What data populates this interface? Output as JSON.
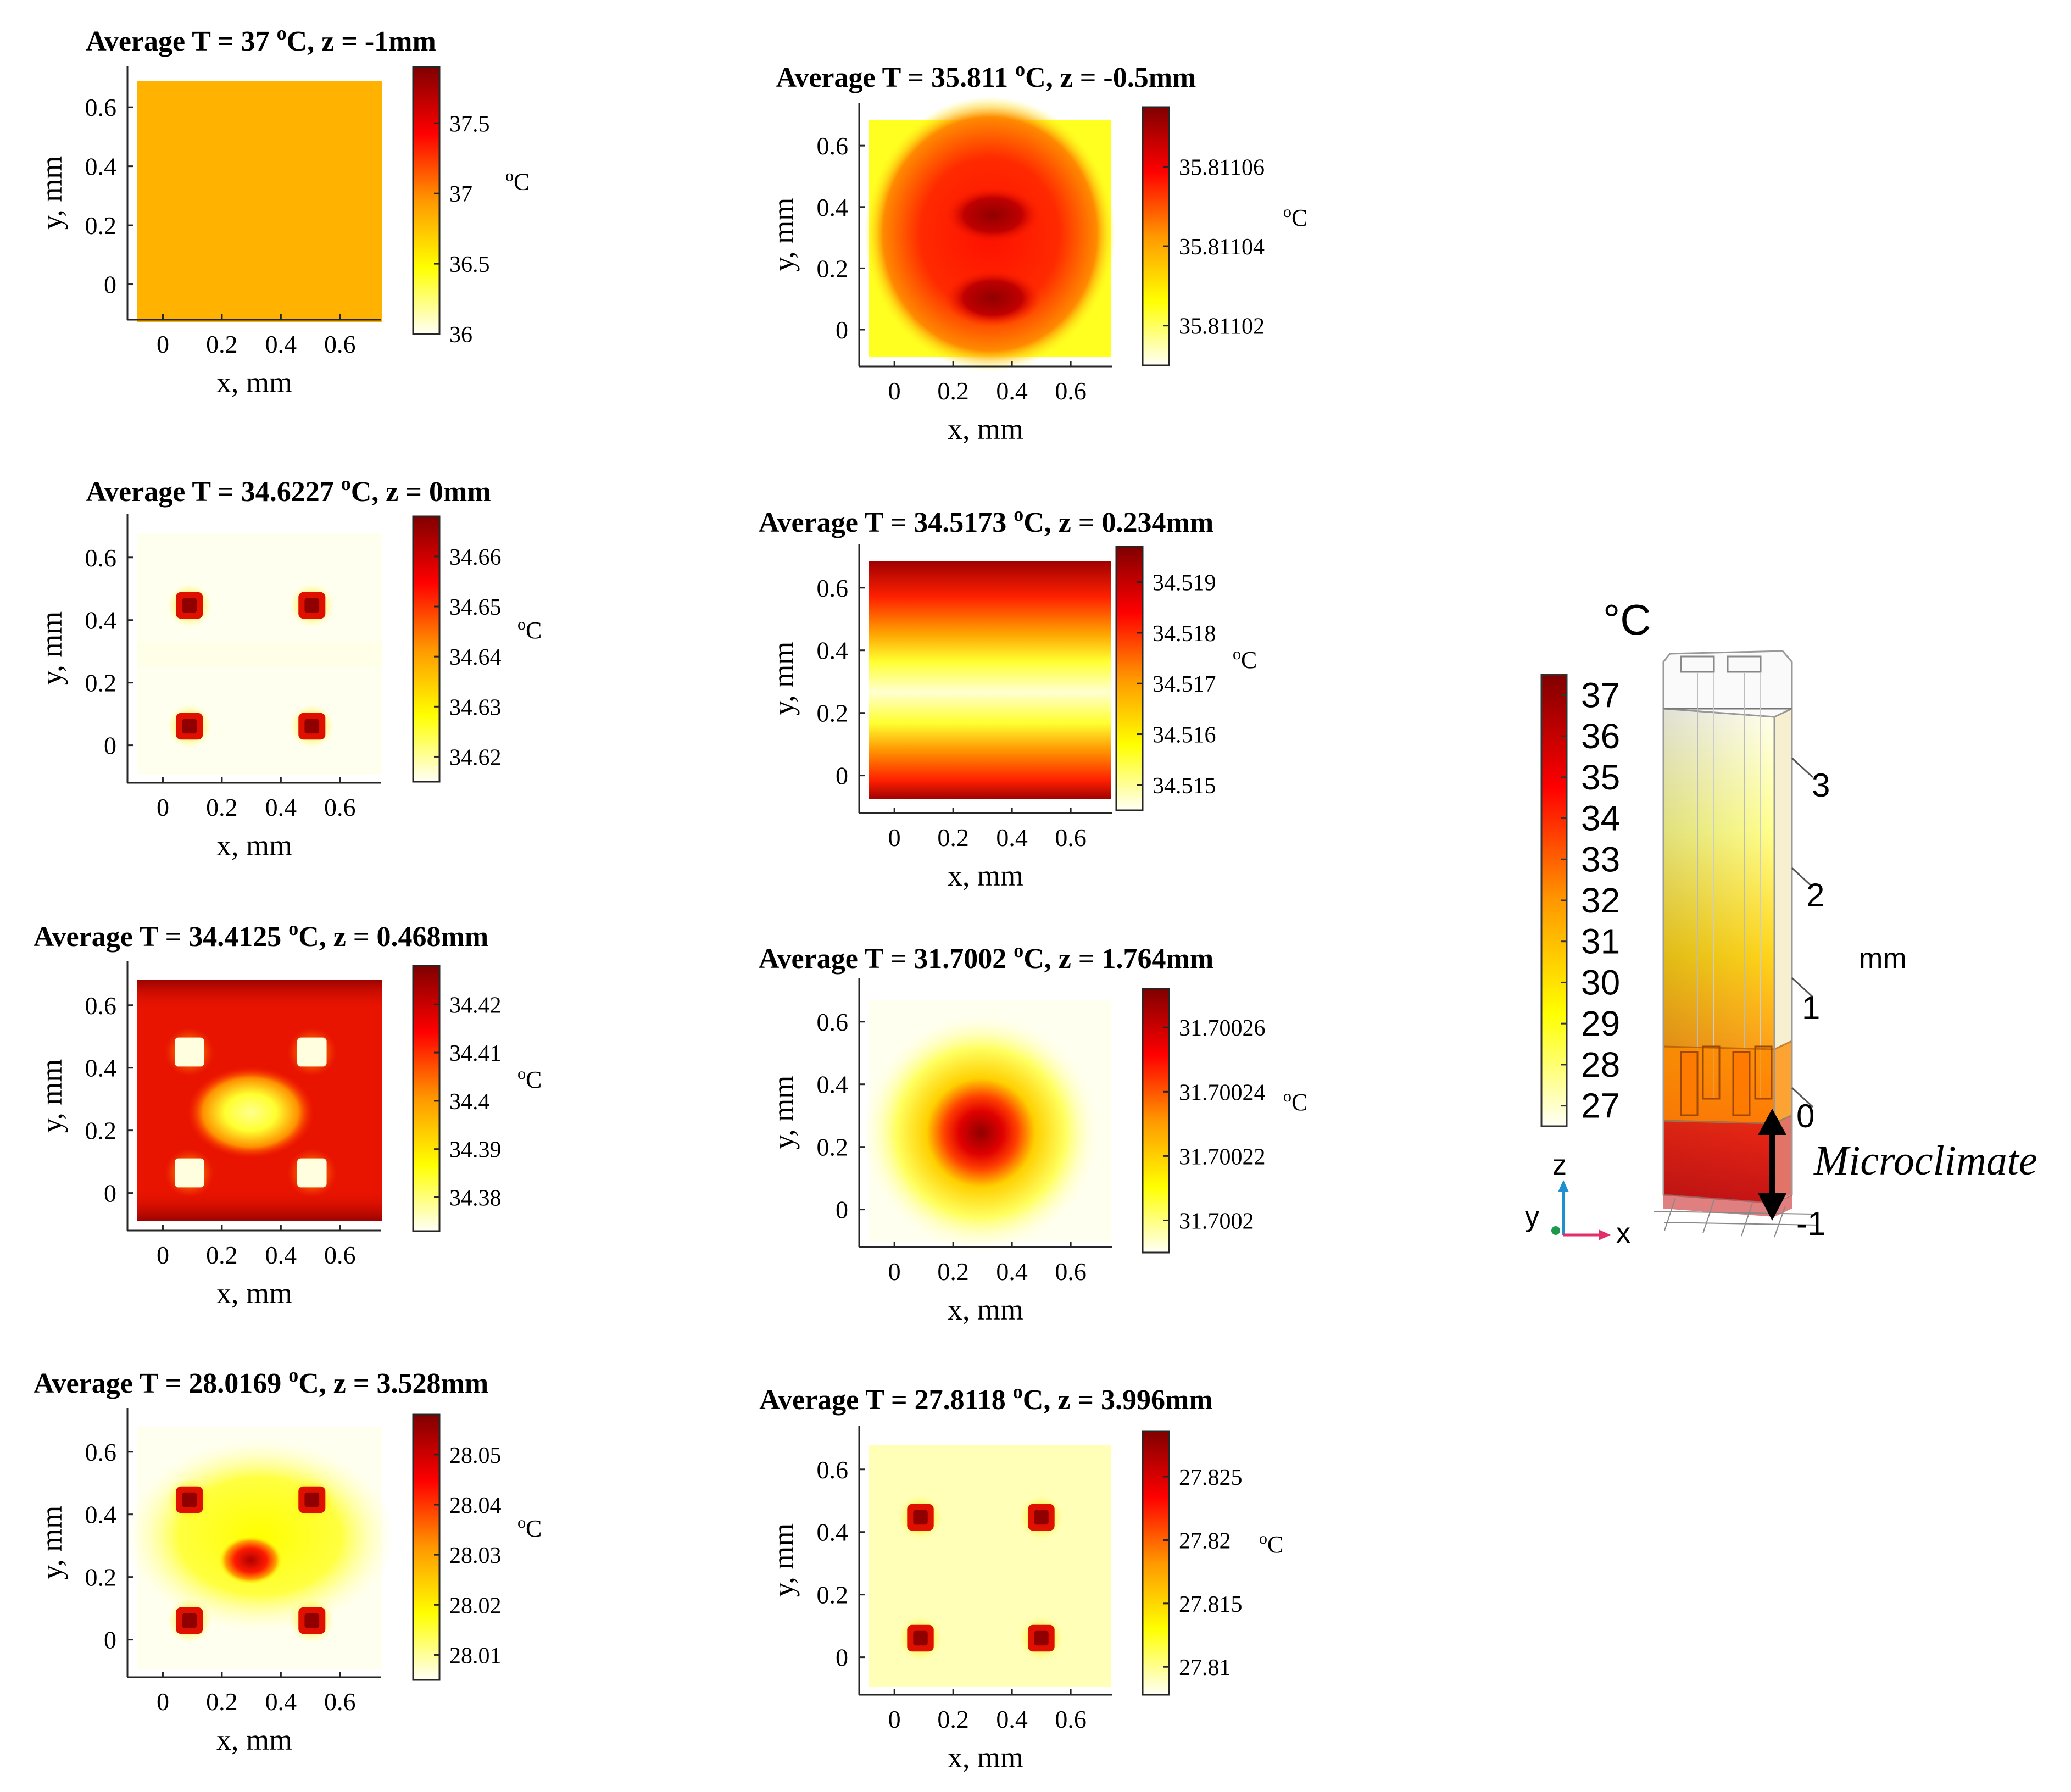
{
  "chart_data": [
    {
      "type": "heatmap",
      "title": "Average T = 37 °C, z = -1mm",
      "title_parts": {
        "pre": "Average T = 37 ",
        "sup": "o",
        "post": "C, z = -1mm"
      },
      "z_mm": -1,
      "average_temperature_c": 37,
      "xlabel": "x, mm",
      "ylabel": "y, mm",
      "xticks": [
        "0",
        "0.2",
        "0.4",
        "0.6"
      ],
      "yticks": [
        "0",
        "0.2",
        "0.4",
        "0.6"
      ],
      "colorbar": {
        "label": "°C",
        "label_parts": {
          "sup": "o",
          "text": "C"
        },
        "range": [
          36,
          37.9
        ],
        "ticks": [
          36,
          36.5,
          37,
          37.5
        ],
        "tick_labels": [
          "36",
          "36.5",
          "37",
          "37.5"
        ]
      },
      "field": {
        "kind": "uniform",
        "value": 37
      }
    },
    {
      "type": "heatmap",
      "title": "Average T = 35.811 °C, z = -0.5mm",
      "title_parts": {
        "pre": "Average T = 35.811 ",
        "sup": "o",
        "post": "C, z = -0.5mm"
      },
      "z_mm": -0.5,
      "average_temperature_c": 35.811,
      "xlabel": "x, mm",
      "ylabel": "y, mm",
      "xticks": [
        "0",
        "0.2",
        "0.4",
        "0.6"
      ],
      "yticks": [
        "0",
        "0.2",
        "0.4",
        "0.6"
      ],
      "colorbar": {
        "label": "°C",
        "label_parts": {
          "sup": "o",
          "text": "C"
        },
        "range": [
          35.81101,
          35.811075
        ],
        "ticks": [
          35.81102,
          35.81104,
          35.81106
        ],
        "tick_labels": [
          "35.81102",
          "35.81104",
          "35.81106"
        ]
      },
      "field": {
        "kind": "twin-hot-core",
        "hot_centers": [
          [
            0.33,
            0.4
          ],
          [
            0.33,
            0.12
          ]
        ]
      }
    },
    {
      "type": "heatmap",
      "title": "Average T = 34.6227 °C, z = 0mm",
      "title_parts": {
        "pre": "Average T = 34.6227 ",
        "sup": "o",
        "post": "C, z = 0mm"
      },
      "z_mm": 0,
      "average_temperature_c": 34.6227,
      "xlabel": "x, mm",
      "ylabel": "y, mm",
      "xticks": [
        "0",
        "0.2",
        "0.4",
        "0.6"
      ],
      "yticks": [
        "0",
        "0.2",
        "0.4",
        "0.6"
      ],
      "colorbar": {
        "label": "°C",
        "label_parts": {
          "sup": "o",
          "text": "C"
        },
        "range": [
          34.615,
          34.668
        ],
        "ticks": [
          34.62,
          34.63,
          34.64,
          34.65,
          34.66
        ],
        "tick_labels": [
          "34.62",
          "34.63",
          "34.64",
          "34.65",
          "34.66"
        ]
      },
      "field": {
        "kind": "four-hot-squares",
        "spots": [
          [
            0.09,
            0.48
          ],
          [
            0.49,
            0.48
          ],
          [
            0.09,
            0.08
          ],
          [
            0.49,
            0.08
          ]
        ]
      }
    },
    {
      "type": "heatmap",
      "title": "Average T = 34.5173 °C, z = 0.234mm",
      "title_parts": {
        "pre": "Average T = 34.5173 ",
        "sup": "o",
        "post": "C, z = 0.234mm"
      },
      "z_mm": 0.234,
      "average_temperature_c": 34.5173,
      "xlabel": "x, mm",
      "ylabel": "y, mm",
      "xticks": [
        "0",
        "0.2",
        "0.4",
        "0.6"
      ],
      "yticks": [
        "0",
        "0.2",
        "0.4",
        "0.6"
      ],
      "colorbar": {
        "label": "°C",
        "label_parts": {
          "sup": "o",
          "text": "C"
        },
        "range": [
          34.5145,
          34.5197
        ],
        "ticks": [
          34.515,
          34.516,
          34.517,
          34.518,
          34.519
        ],
        "tick_labels": [
          "34.515",
          "34.516",
          "34.517",
          "34.518",
          "34.519"
        ]
      },
      "field": {
        "kind": "horizontal-band",
        "cool_center_y": 0.28
      }
    },
    {
      "type": "heatmap",
      "title": "Average T = 34.4125 °C, z = 0.468mm",
      "title_parts": {
        "pre": "Average T = 34.4125 ",
        "sup": "o",
        "post": "C, z = 0.468mm"
      },
      "z_mm": 0.468,
      "average_temperature_c": 34.4125,
      "xlabel": "x, mm",
      "ylabel": "y, mm",
      "xticks": [
        "0",
        "0.2",
        "0.4",
        "0.6"
      ],
      "yticks": [
        "0",
        "0.2",
        "0.4",
        "0.6"
      ],
      "colorbar": {
        "label": "°C",
        "label_parts": {
          "sup": "o",
          "text": "C"
        },
        "range": [
          34.373,
          34.428
        ],
        "ticks": [
          34.38,
          34.39,
          34.4,
          34.41,
          34.42
        ],
        "tick_labels": [
          "34.38",
          "34.39",
          "34.4",
          "34.41",
          "34.42"
        ]
      },
      "field": {
        "kind": "four-cool-squares-center-cool",
        "spots": [
          [
            0.09,
            0.48
          ],
          [
            0.49,
            0.48
          ],
          [
            0.09,
            0.08
          ],
          [
            0.49,
            0.08
          ]
        ],
        "center": [
          0.29,
          0.28
        ]
      }
    },
    {
      "type": "heatmap",
      "title": "Average T = 31.7002 °C, z = 1.764mm",
      "title_parts": {
        "pre": "Average T = 31.7002 ",
        "sup": "o",
        "post": "C, z = 1.764mm"
      },
      "z_mm": 1.764,
      "average_temperature_c": 31.7002,
      "xlabel": "x, mm",
      "ylabel": "y, mm",
      "xticks": [
        "0",
        "0.2",
        "0.4",
        "0.6"
      ],
      "yticks": [
        "0",
        "0.2",
        "0.4",
        "0.6"
      ],
      "colorbar": {
        "label": "°C",
        "label_parts": {
          "sup": "o",
          "text": "C"
        },
        "range": [
          31.70019,
          31.700272
        ],
        "ticks": [
          31.7002,
          31.70022,
          31.70024,
          31.70026
        ],
        "tick_labels": [
          "31.7002",
          "31.70022",
          "31.70024",
          "31.70026"
        ]
      },
      "field": {
        "kind": "central-hot-spot",
        "center": [
          0.29,
          0.28
        ]
      }
    },
    {
      "type": "heatmap",
      "title": "Average T = 28.0169 °C, z = 3.528mm",
      "title_parts": {
        "pre": "Average T = 28.0169 ",
        "sup": "o",
        "post": "C, z = 3.528mm"
      },
      "z_mm": 3.528,
      "average_temperature_c": 28.0169,
      "xlabel": "x, mm",
      "ylabel": "y, mm",
      "xticks": [
        "0",
        "0.2",
        "0.4",
        "0.6"
      ],
      "yticks": [
        "0",
        "0.2",
        "0.4",
        "0.6"
      ],
      "colorbar": {
        "label": "°C",
        "label_parts": {
          "sup": "o",
          "text": "C"
        },
        "range": [
          28.005,
          28.058
        ],
        "ticks": [
          28.01,
          28.02,
          28.03,
          28.04,
          28.05
        ],
        "tick_labels": [
          "28.01",
          "28.02",
          "28.03",
          "28.04",
          "28.05"
        ]
      },
      "field": {
        "kind": "four-hot-squares-center-hot",
        "spots": [
          [
            0.09,
            0.48
          ],
          [
            0.49,
            0.48
          ],
          [
            0.09,
            0.08
          ],
          [
            0.49,
            0.08
          ]
        ],
        "center": [
          0.29,
          0.28
        ]
      }
    },
    {
      "type": "heatmap",
      "title": "Average T = 27.8118 °C, z = 3.996mm",
      "title_parts": {
        "pre": "Average T = 27.8118 ",
        "sup": "o",
        "post": "C, z = 3.996mm"
      },
      "z_mm": 3.996,
      "average_temperature_c": 27.8118,
      "xlabel": "x, mm",
      "ylabel": "y, mm",
      "xticks": [
        "0",
        "0.2",
        "0.4",
        "0.6"
      ],
      "yticks": [
        "0",
        "0.2",
        "0.4",
        "0.6"
      ],
      "colorbar": {
        "label": "°C",
        "label_parts": {
          "sup": "o",
          "text": "C"
        },
        "range": [
          27.8078,
          27.8286
        ],
        "ticks": [
          27.81,
          27.815,
          27.82,
          27.825
        ],
        "tick_labels": [
          "27.81",
          "27.815",
          "27.82",
          "27.825"
        ]
      },
      "field": {
        "kind": "four-hot-squares-yellow-bg",
        "spots": [
          [
            0.09,
            0.48
          ],
          [
            0.49,
            0.48
          ],
          [
            0.09,
            0.08
          ],
          [
            0.49,
            0.08
          ]
        ]
      }
    }
  ],
  "model_3d": {
    "unit_label": "°C",
    "colorbar_ticks": [
      "37",
      "36",
      "35",
      "34",
      "33",
      "32",
      "31",
      "30",
      "29",
      "28",
      "27"
    ],
    "colorbar_range": [
      26.5,
      37.5
    ],
    "axis_ticks": [
      "3",
      "2",
      "1",
      "0",
      "-1"
    ],
    "axis_unit": "mm",
    "annotation": "Microclimate",
    "triad_labels": {
      "z": "z",
      "y": "y",
      "x": "x"
    }
  },
  "colormap": [
    "#fffff7",
    "#ffff00",
    "#ff9800",
    "#ff0000",
    "#800000"
  ],
  "colors": {
    "uniform_fill": "#ffb300",
    "axis": "#262626",
    "text": "#000000"
  }
}
